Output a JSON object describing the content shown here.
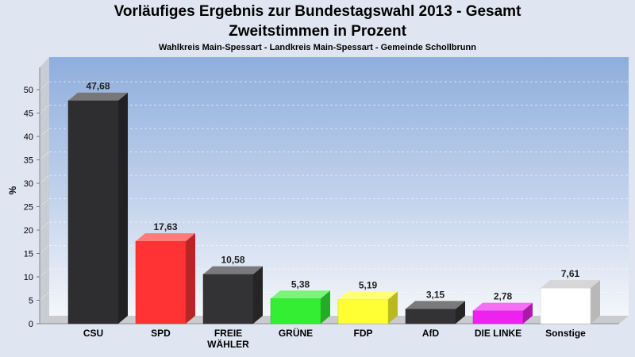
{
  "title": "Vorläufiges Ergebnis zur Bundestagswahl 2013 - Gesamt",
  "subtitle": "Zweitstimmen in Prozent",
  "caption": "Wahlkreis Main-Spessart - Landkreis Main-Spessart - Gemeinde Schollbrunn",
  "chart_data": {
    "type": "bar",
    "title": "Vorläufiges Ergebnis zur Bundestagswahl 2013 - Gesamt",
    "subtitle": "Zweitstimmen in Prozent",
    "ylabel": "%",
    "xlabel": "",
    "ylim": [
      0,
      55
    ],
    "yticks": [
      0,
      5,
      10,
      15,
      20,
      25,
      30,
      35,
      40,
      45,
      50
    ],
    "grid": true,
    "categories": [
      [
        "CSU"
      ],
      [
        "SPD"
      ],
      [
        "FREIE",
        "WÄHLER"
      ],
      [
        "GRÜNE"
      ],
      [
        "FDP"
      ],
      [
        "AfD"
      ],
      [
        "DIE LINKE"
      ],
      [
        "Sonstige"
      ]
    ],
    "values": [
      47.68,
      17.63,
      10.58,
      5.38,
      5.19,
      3.15,
      2.78,
      7.61
    ],
    "value_labels": [
      "47,68",
      "17,63",
      "10,58",
      "5,38",
      "5,19",
      "3,15",
      "2,78",
      "7,61"
    ],
    "colors": [
      "#2e2e30",
      "#ff3333",
      "#333335",
      "#33ee33",
      "#ffff33",
      "#333335",
      "#ee22ee",
      "#ffffff"
    ]
  }
}
